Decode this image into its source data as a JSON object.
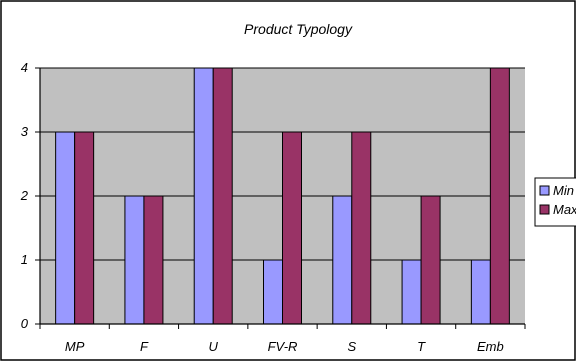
{
  "chart_data": {
    "type": "bar",
    "title": "Product Typology",
    "categories": [
      "MP",
      "F",
      "U",
      "FV-R",
      "S",
      "T",
      "Emb"
    ],
    "series": [
      {
        "name": "Min",
        "color": "#9999ff",
        "values": [
          3,
          2,
          4,
          1,
          2,
          1,
          1
        ]
      },
      {
        "name": "Max",
        "color": "#993366",
        "values": [
          3,
          2,
          4,
          3,
          3,
          2,
          4
        ]
      }
    ],
    "ylim": [
      0,
      4
    ],
    "yticks": [
      0,
      1,
      2,
      3,
      4
    ],
    "grid": true,
    "plot_background": "#c0c0c0",
    "legend_position": "right"
  }
}
